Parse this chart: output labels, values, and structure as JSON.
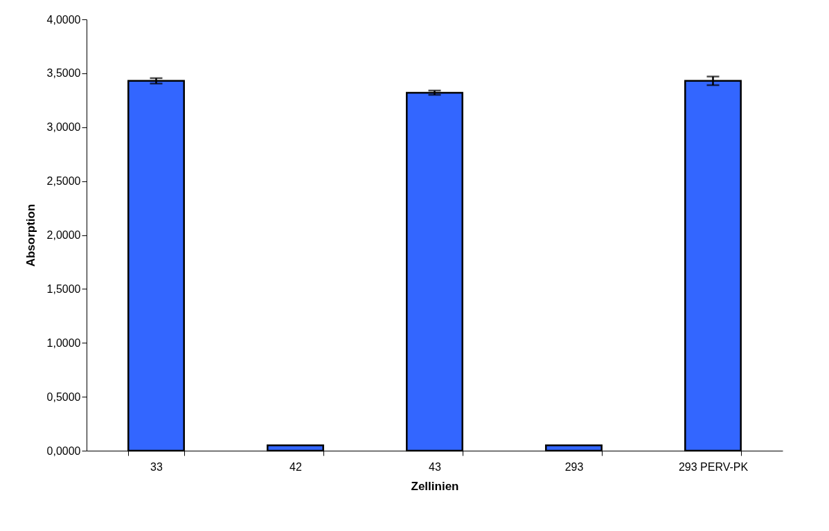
{
  "chart_data": {
    "type": "bar",
    "xlabel": "Zellinien",
    "ylabel": "Absorption",
    "categories": [
      "33",
      "42",
      "43",
      "293",
      "293 PERV-PK"
    ],
    "values": [
      3.43,
      0.05,
      3.32,
      0.05,
      3.43
    ],
    "errors": [
      0.025,
      null,
      0.02,
      null,
      0.04
    ],
    "color": "#3366ff",
    "ylim": [
      0,
      4
    ],
    "yticks": [
      {
        "value": 0,
        "label": "0,0000"
      },
      {
        "value": 0.5,
        "label": "0,5000"
      },
      {
        "value": 1,
        "label": "1,0000"
      },
      {
        "value": 1.5,
        "label": "1,5000"
      },
      {
        "value": 2,
        "label": "2,0000"
      },
      {
        "value": 2.5,
        "label": "2,5000"
      },
      {
        "value": 3,
        "label": "3,0000"
      },
      {
        "value": 3.5,
        "label": "3,5000"
      },
      {
        "value": 4,
        "label": "4,0000"
      }
    ],
    "grid": false
  }
}
